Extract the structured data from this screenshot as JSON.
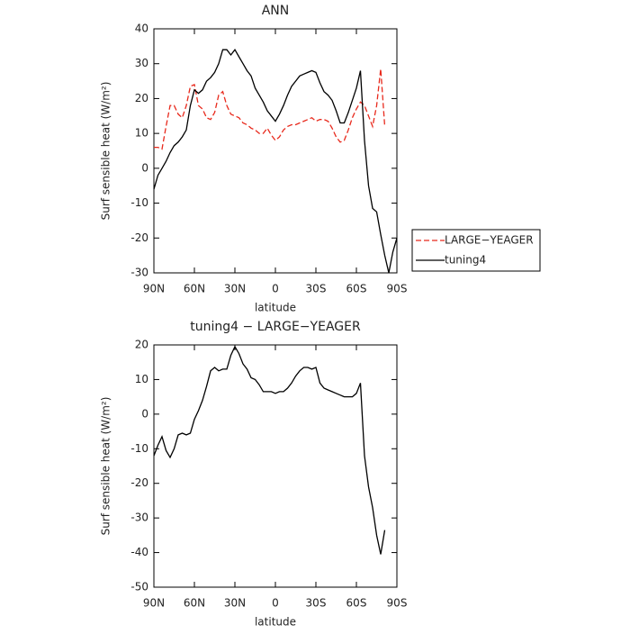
{
  "chart_data": [
    {
      "type": "line",
      "title": "ANN",
      "xlabel": "latitude",
      "ylabel": "Surf sensible heat (W/m²)",
      "x": [
        90,
        87,
        84,
        81,
        78,
        75,
        72,
        69,
        66,
        63,
        60,
        57,
        54,
        51,
        48,
        45,
        42,
        39,
        36,
        33,
        30,
        27,
        24,
        21,
        18,
        15,
        12,
        9,
        6,
        3,
        0,
        -3,
        -6,
        -9,
        -12,
        -15,
        -18,
        -21,
        -24,
        -27,
        -30,
        -33,
        -36,
        -39,
        -42,
        -45,
        -48,
        -51,
        -54,
        -57,
        -60,
        -63,
        -66,
        -69,
        -72,
        -75,
        -78,
        -81,
        -84,
        -87,
        -90
      ],
      "series": [
        {
          "name": "LARGE−YEAGER",
          "color": "#e8291c",
          "linestyle": "dashed",
          "values": [
            6,
            6,
            5.5,
            12,
            18,
            18,
            15.5,
            14.5,
            18,
            23.5,
            24,
            18,
            17,
            14.5,
            14,
            16,
            21,
            22,
            18,
            15.5,
            15,
            14.5,
            13,
            12.5,
            11.5,
            11,
            10,
            10,
            11.5,
            9.5,
            8,
            9,
            11,
            12,
            12.5,
            12.5,
            13,
            13.5,
            14,
            14.5,
            13.5,
            14,
            14,
            13.5,
            11.5,
            9,
            7.5,
            8,
            11,
            14.5,
            17,
            19,
            18,
            15,
            12,
            18,
            28.5,
            12,
            null,
            null,
            null
          ]
        },
        {
          "name": "tuning4",
          "color": "#000000",
          "linestyle": "solid",
          "values": [
            -6,
            -2,
            0,
            2,
            4.5,
            6.5,
            7.5,
            9,
            11,
            18,
            22.5,
            21.5,
            22.5,
            25,
            26,
            27.5,
            30,
            34,
            34,
            32.5,
            34,
            32,
            30,
            28,
            26.5,
            23,
            21,
            19,
            16.5,
            15,
            13.5,
            15.5,
            18,
            21,
            23.5,
            25,
            26.5,
            27,
            27.5,
            28,
            27.5,
            24.5,
            22,
            21,
            19.5,
            16.5,
            13,
            13,
            16,
            19.5,
            23,
            28,
            8,
            -5,
            -11.5,
            -12.5,
            -19,
            -25,
            -30,
            -24,
            -20
          ]
        }
      ],
      "xlim": [
        90,
        -90
      ],
      "xticks": [
        {
          "value": 90,
          "label": "90N"
        },
        {
          "value": 60,
          "label": "60N"
        },
        {
          "value": 30,
          "label": "30N"
        },
        0,
        {
          "value": -30,
          "label": "30S"
        },
        {
          "value": -60,
          "label": "60S"
        },
        {
          "value": -90,
          "label": "90S"
        }
      ],
      "ylim": [
        -30,
        40
      ],
      "yticks": [
        -30,
        -20,
        -10,
        0,
        10,
        20,
        30,
        40
      ],
      "legend": "right"
    },
    {
      "type": "line",
      "title": "tuning4 − LARGE−YEAGER",
      "xlabel": "latitude",
      "ylabel": "Surf sensible heat (W/m²)",
      "x": [
        90,
        87,
        84,
        81,
        78,
        75,
        72,
        69,
        66,
        63,
        60,
        57,
        54,
        51,
        48,
        45,
        42,
        39,
        36,
        33,
        30,
        27,
        24,
        21,
        18,
        15,
        12,
        9,
        6,
        3,
        0,
        -3,
        -6,
        -9,
        -12,
        -15,
        -18,
        -21,
        -24,
        -27,
        -30,
        -33,
        -36,
        -39,
        -42,
        -45,
        -48,
        -51,
        -54,
        -57,
        -60,
        -63,
        -66,
        -69,
        -72,
        -75,
        -78,
        -81,
        -84,
        -87,
        -90
      ],
      "color": "#000000",
      "values": [
        -12,
        -9,
        -6.5,
        -10.5,
        -12.5,
        -10,
        -6,
        -5.5,
        -6,
        -5.5,
        -1.5,
        1,
        4,
        8,
        12.5,
        13.5,
        12.5,
        13,
        13,
        17,
        19.5,
        17.5,
        14.5,
        13,
        10.5,
        10,
        8.5,
        6.5,
        6.5,
        6.5,
        6,
        6.5,
        6.5,
        7.5,
        9,
        11,
        12.5,
        13.5,
        13.5,
        13,
        13.5,
        9,
        7.5,
        7,
        6.5,
        6,
        5.5,
        5,
        5,
        5,
        6,
        9,
        -12,
        -21,
        -27,
        -35,
        -40.5,
        -33.5,
        null,
        null,
        null
      ],
      "xlim": [
        90,
        -90
      ],
      "xticks": [
        {
          "value": 90,
          "label": "90N"
        },
        {
          "value": 60,
          "label": "60N"
        },
        {
          "value": 30,
          "label": "30N"
        },
        0,
        {
          "value": -30,
          "label": "30S"
        },
        {
          "value": -60,
          "label": "60S"
        },
        {
          "value": -90,
          "label": "90S"
        }
      ],
      "ylim": [
        -50,
        20
      ],
      "yticks": [
        -50,
        -40,
        -30,
        -20,
        -10,
        0,
        10,
        20
      ]
    }
  ]
}
